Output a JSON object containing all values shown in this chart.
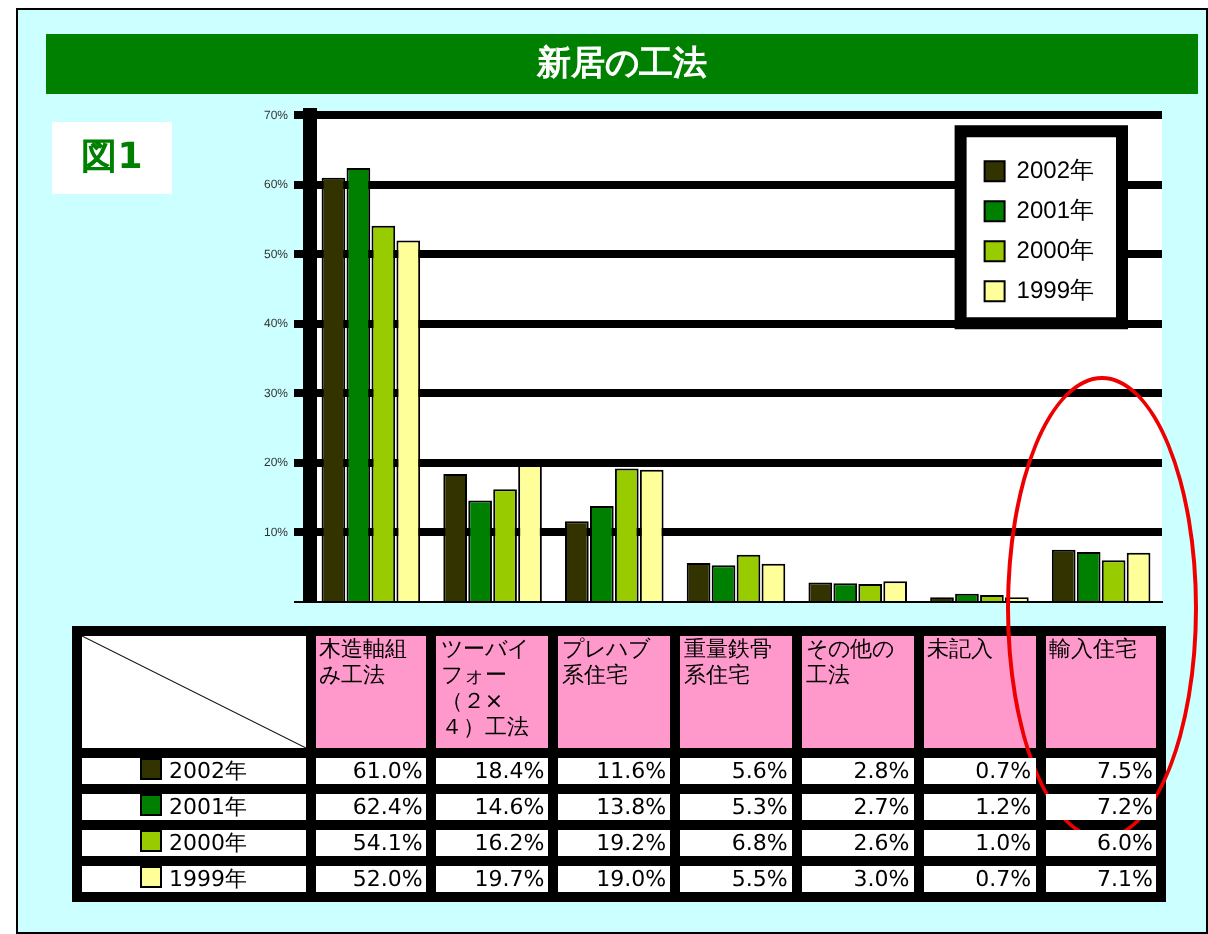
{
  "chart_data": {
    "type": "bar",
    "title": "新居の工法",
    "annotations": [
      "図1"
    ],
    "categories": [
      "木造軸組み工法",
      "ツーバイフォー（２×４）工法",
      "プレハブ系住宅",
      "重量鉄骨系住宅",
      "その他の工法",
      "未記入",
      "輸入住宅"
    ],
    "series": [
      {
        "name": "2002年",
        "color": "#333300",
        "values": [
          61.0,
          18.4,
          11.6,
          5.6,
          2.8,
          0.7,
          7.5
        ],
        "value_labels": [
          "61.0%",
          "18.4%",
          "11.6%",
          "5.6%",
          "2.8%",
          "0.7%",
          "7.5%"
        ]
      },
      {
        "name": "2001年",
        "color": "#008000",
        "values": [
          62.4,
          14.6,
          13.8,
          5.3,
          2.7,
          1.2,
          7.2
        ],
        "value_labels": [
          "62.4%",
          "14.6%",
          "13.8%",
          "5.3%",
          "2.7%",
          "1.2%",
          "7.2%"
        ]
      },
      {
        "name": "2000年",
        "color": "#99cc00",
        "values": [
          54.1,
          16.2,
          19.2,
          6.8,
          2.6,
          1.0,
          6.0
        ],
        "value_labels": [
          "54.1%",
          "16.2%",
          "19.2%",
          "6.8%",
          "2.6%",
          "1.0%",
          "6.0%"
        ]
      },
      {
        "name": "1999年",
        "color": "#ffff99",
        "values": [
          52.0,
          19.7,
          19.0,
          5.5,
          3.0,
          0.7,
          7.1
        ],
        "value_labels": [
          "52.0%",
          "19.7%",
          "19.0%",
          "5.5%",
          "3.0%",
          "0.7%",
          "7.1%"
        ]
      }
    ],
    "ylim": [
      0,
      70
    ],
    "yticks": [
      {
        "value": 0,
        "label": null
      },
      {
        "value": 10,
        "label": "10%"
      },
      {
        "value": 20,
        "label": "20%"
      },
      {
        "value": 30,
        "label": "30%"
      },
      {
        "value": 40,
        "label": "40%"
      },
      {
        "value": 50,
        "label": "50%"
      },
      {
        "value": 60,
        "label": "60%"
      },
      {
        "value": 70,
        "label": "70%"
      }
    ],
    "grid": "y",
    "legend": "top right"
  }
}
